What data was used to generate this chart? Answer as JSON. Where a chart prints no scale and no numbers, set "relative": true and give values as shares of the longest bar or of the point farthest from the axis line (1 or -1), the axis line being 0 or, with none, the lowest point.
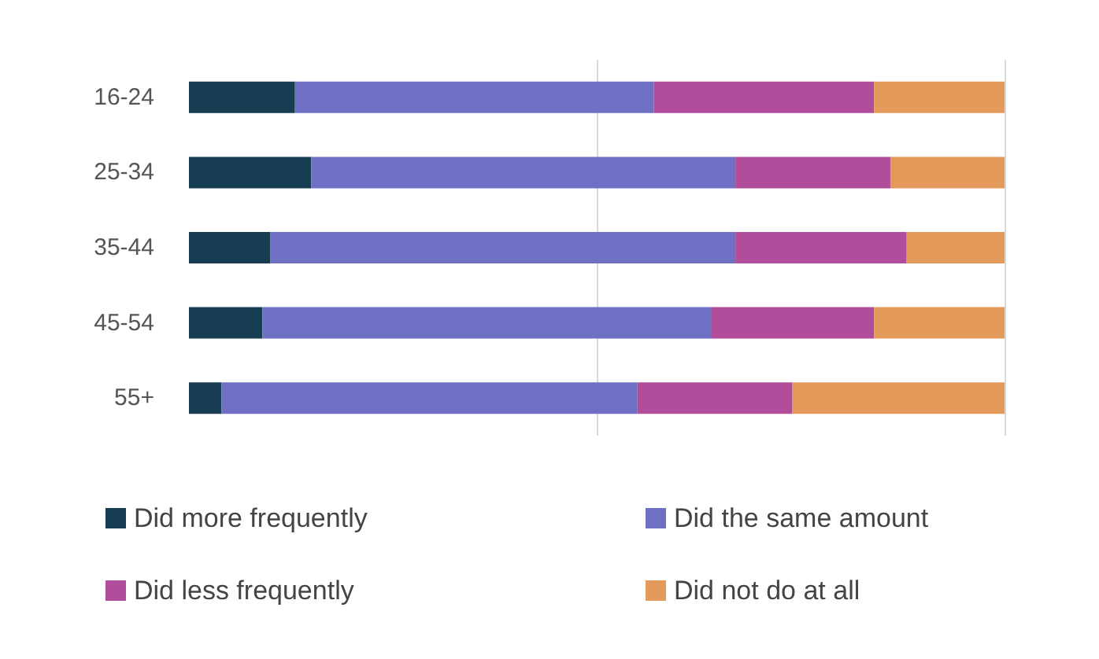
{
  "chart_data": {
    "type": "bar",
    "orientation": "horizontal",
    "stacked": true,
    "relative": true,
    "legend": "bottom",
    "ref_lines": [
      {
        "axis": "x",
        "value": 0.5,
        "color": "#d9d9d9"
      },
      {
        "axis": "x",
        "value": 1,
        "color": "#d9d9d9"
      }
    ],
    "categories": [
      "16-24",
      "25-34",
      "35-44",
      "45-54",
      "55+"
    ],
    "series": [
      {
        "name": "Did more frequently",
        "color": "#173d52",
        "values": [
          0.13,
          0.15,
          0.1,
          0.09,
          0.04
        ]
      },
      {
        "name": "Did the same amount",
        "color": "#6f6fc4",
        "values": [
          0.44,
          0.52,
          0.57,
          0.55,
          0.51
        ]
      },
      {
        "name": "Did less frequently",
        "color": "#b04e9c",
        "values": [
          0.27,
          0.19,
          0.21,
          0.2,
          0.19
        ]
      },
      {
        "name": "Did not do at all",
        "color": "#e39a5a",
        "values": [
          0.16,
          0.14,
          0.12,
          0.16,
          0.26
        ]
      }
    ]
  }
}
